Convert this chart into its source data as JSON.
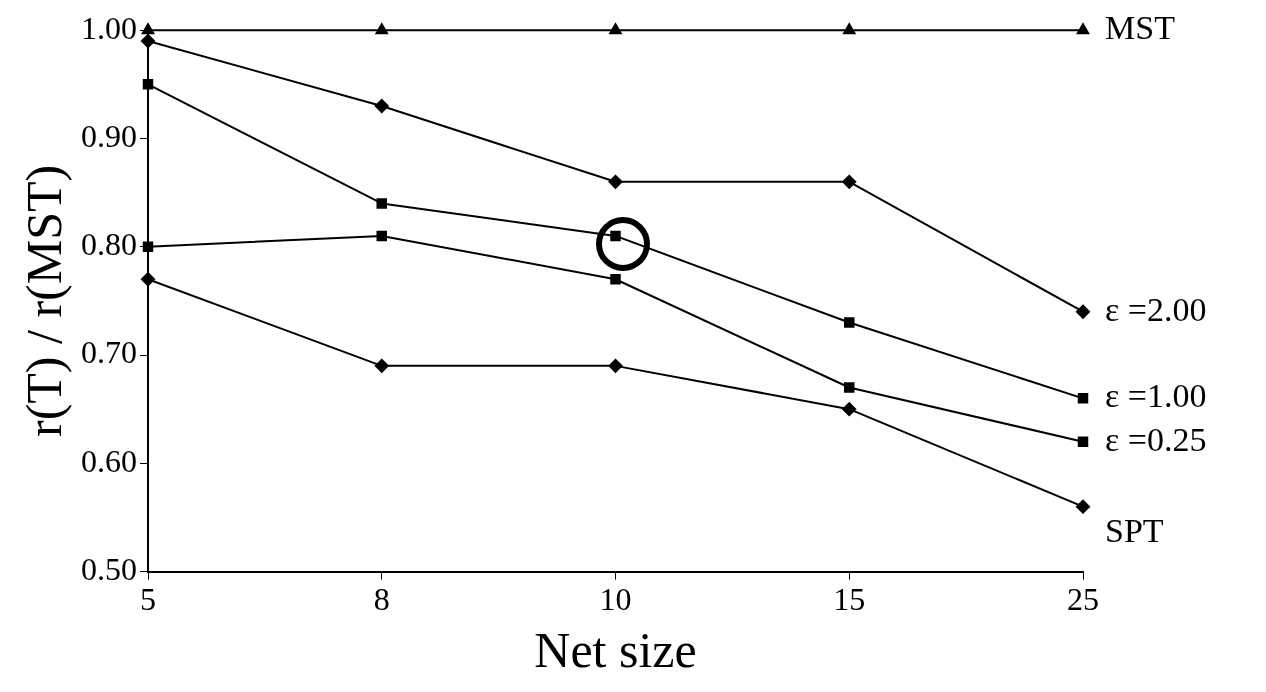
{
  "chart_data": {
    "type": "line",
    "xlabel": "Net size",
    "ylabel": "r(T) / r(MST)",
    "categories": [
      "5",
      "8",
      "10",
      "15",
      "25"
    ],
    "ylim": [
      0.5,
      1.0
    ],
    "yticks": [
      {
        "value": 0.5,
        "label": "0.50"
      },
      {
        "value": 0.6,
        "label": "0.60"
      },
      {
        "value": 0.7,
        "label": "0.70"
      },
      {
        "value": 0.8,
        "label": "0.80"
      },
      {
        "value": 0.9,
        "label": "0.90"
      },
      {
        "value": 1.0,
        "label": "1.00"
      }
    ],
    "grid": false,
    "legend": false,
    "series": [
      {
        "name": "MST",
        "color": "#000000",
        "marker": "triangle",
        "values": [
          1.0,
          1.0,
          1.0,
          1.0,
          1.0
        ]
      },
      {
        "name": "ε =2.00",
        "color": "#000000",
        "marker": "diamond",
        "values": [
          0.99,
          0.93,
          0.86,
          0.86,
          0.74
        ]
      },
      {
        "name": "ε =1.00",
        "color": "#000000",
        "marker": "square",
        "values": [
          0.95,
          0.84,
          0.81,
          0.73,
          0.66
        ]
      },
      {
        "name": "ε =0.25",
        "color": "#000000",
        "marker": "square",
        "values": [
          0.8,
          0.81,
          0.77,
          0.67,
          0.62
        ]
      },
      {
        "name": "SPT",
        "color": "#000000",
        "marker": "diamond",
        "values": [
          0.77,
          0.69,
          0.69,
          0.65,
          0.56
        ]
      }
    ]
  }
}
